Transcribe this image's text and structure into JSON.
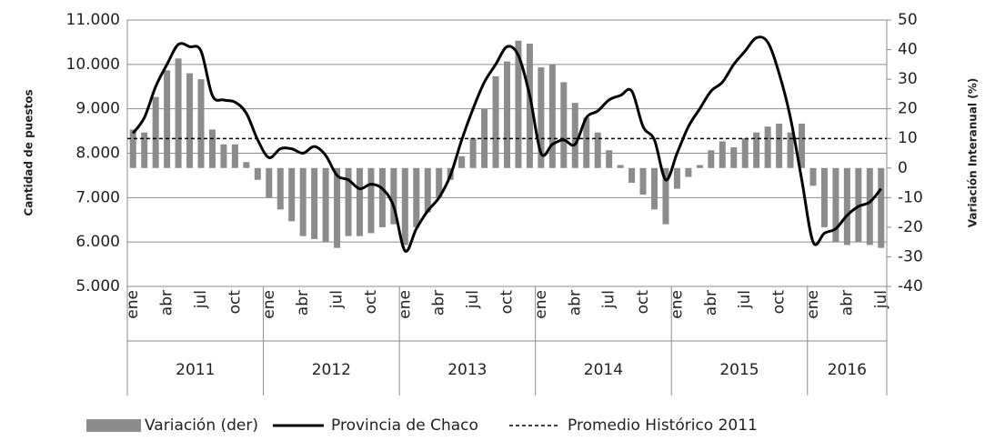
{
  "chart_data": {
    "type": "bar-line",
    "y_label": "Cantidad de puestos",
    "y2_label": "Variación Interanual (%)",
    "categories": [
      "ene",
      null,
      null,
      "abr",
      null,
      null,
      "jul",
      null,
      null,
      "oct",
      null,
      null,
      "ene",
      null,
      null,
      "abr",
      null,
      null,
      "jul",
      null,
      null,
      "oct",
      null,
      null,
      "ene",
      null,
      null,
      "abr",
      null,
      null,
      "jul",
      null,
      null,
      "oct",
      null,
      null,
      "ene",
      null,
      null,
      "abr",
      null,
      null,
      "jul",
      null,
      null,
      "oct",
      null,
      null,
      "ene",
      null,
      null,
      "abr",
      null,
      null,
      "jul",
      null,
      null,
      "oct",
      null,
      null,
      "ene",
      null,
      null,
      "abr",
      null,
      null,
      "jul"
    ],
    "groups": [
      "2011",
      "2012",
      "2013",
      "2014",
      "2015",
      "2016"
    ],
    "ylim": [
      5000,
      11000
    ],
    "yticks": [
      {
        "value": 5000,
        "label": "5.000"
      },
      {
        "value": 6000,
        "label": "6.000"
      },
      {
        "value": 7000,
        "label": "7.000"
      },
      {
        "value": 8000,
        "label": "8.000"
      },
      {
        "value": 9000,
        "label": "9.000"
      },
      {
        "value": 10000,
        "label": "10.000"
      },
      {
        "value": 11000,
        "label": "11.000"
      }
    ],
    "y2lim": [
      -40,
      50
    ],
    "y2ticks": [
      -40,
      -30,
      -20,
      -10,
      0,
      10,
      20,
      30,
      40,
      50
    ],
    "grid": true,
    "series": [
      {
        "name": "Variación (der)",
        "type": "bar",
        "axis": "y2",
        "color": "#8c8c8c",
        "values": [
          13,
          12,
          24,
          33,
          37,
          32,
          30,
          13,
          8,
          8,
          2,
          -4,
          -10,
          -14,
          -18,
          -23,
          -24,
          -25,
          -27,
          -23,
          -23,
          -22,
          -20,
          -19,
          -26,
          -20,
          -15,
          -10,
          -4,
          4,
          10,
          20,
          31,
          36,
          43,
          42,
          34,
          35,
          29,
          22,
          17,
          12,
          6,
          1,
          -5,
          -9,
          -14,
          -19,
          -7,
          -3,
          1,
          6,
          9,
          7,
          10,
          12,
          14,
          15,
          12,
          15,
          -6,
          -20,
          -25,
          -26,
          -25,
          -26,
          -27
        ],
        "bar_last": -28
      },
      {
        "name": "Provincia de Chaco",
        "type": "line",
        "color": "#000000",
        "values": [
          8450,
          8800,
          9500,
          10000,
          10450,
          10400,
          10300,
          9300,
          9200,
          9150,
          8900,
          8300,
          7900,
          8100,
          8100,
          8000,
          8150,
          7950,
          7500,
          7400,
          7200,
          7300,
          7200,
          6800,
          5800,
          6300,
          6700,
          7000,
          7500,
          8300,
          9000,
          9600,
          10000,
          10400,
          10200,
          9300,
          8000,
          8200,
          8300,
          8200,
          8800,
          8950,
          9200,
          9300,
          9400,
          8600,
          8300,
          7400,
          8000,
          8600,
          9000,
          9400,
          9600,
          10000,
          10300,
          10600,
          10500,
          9800,
          8800,
          7400,
          6000,
          6200,
          6300,
          6600,
          6800,
          6900,
          7200
        ]
      },
      {
        "name": "Promedio Histórico 2011",
        "type": "dashed",
        "color": "#000000",
        "value": 8330
      }
    ]
  }
}
